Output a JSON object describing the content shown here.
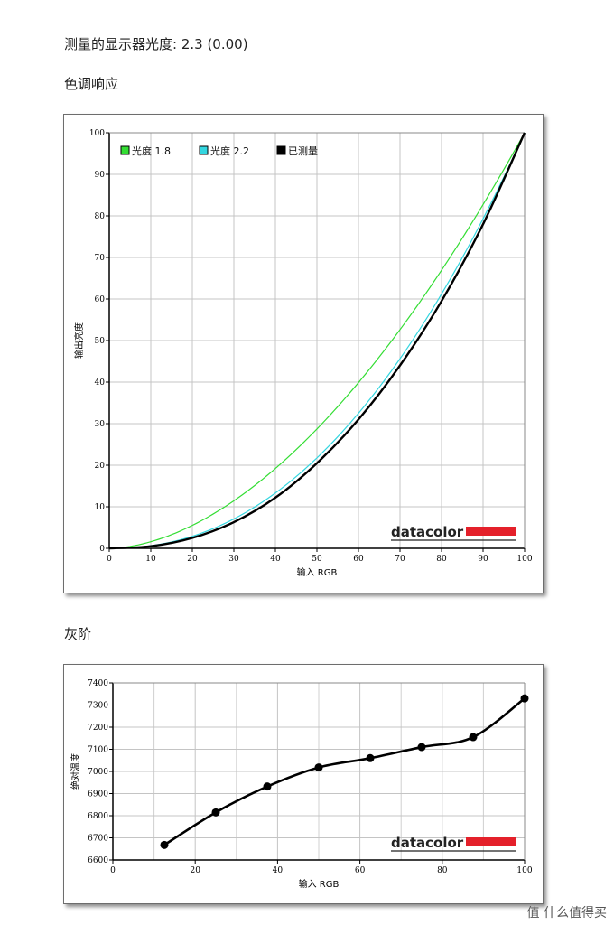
{
  "page": {
    "display_gamma_label": "测量的显示器光度:  2.3 (0.00)",
    "tone_response_heading": "色调响应",
    "grayscale_heading": "灰阶",
    "watermark": "值 什么值得买",
    "brand_logo_text": "datacolor",
    "brand_color": "#e4202a"
  },
  "chart_data": [
    {
      "type": "line",
      "title": "",
      "xlabel": "输入 RGB",
      "ylabel": "输出亮度",
      "xlim": [
        0,
        100
      ],
      "ylim": [
        0,
        100
      ],
      "xticks": [
        "0",
        "10",
        "20",
        "30",
        "40",
        "50",
        "60",
        "70",
        "80",
        "90",
        "100"
      ],
      "yticks": [
        "0",
        "10",
        "20",
        "30",
        "40",
        "50",
        "60",
        "70",
        "80",
        "90",
        "100"
      ],
      "grid": true,
      "legend_position": "top-left",
      "series": [
        {
          "name": "光度 1.8",
          "color": "#33dd33",
          "gamma": 1.8,
          "x": [
            0,
            10,
            20,
            30,
            40,
            50,
            60,
            70,
            80,
            90,
            100
          ],
          "y": [
            0,
            1.6,
            5.5,
            11.5,
            19.2,
            28.7,
            39.8,
            52.6,
            66.9,
            82.7,
            100
          ]
        },
        {
          "name": "光度 2.2",
          "color": "#33d6e0",
          "gamma": 2.2,
          "x": [
            0,
            10,
            20,
            30,
            40,
            50,
            60,
            70,
            80,
            90,
            100
          ],
          "y": [
            0,
            0.6,
            2.9,
            7.1,
            13.3,
            21.8,
            32.5,
            45.6,
            61.2,
            79.3,
            100
          ]
        },
        {
          "name": "已测量",
          "color": "#000000",
          "x": [
            0,
            10,
            20,
            30,
            40,
            50,
            60,
            70,
            80,
            90,
            100
          ],
          "y": [
            0,
            0.5,
            2.5,
            6.3,
            12.2,
            20.5,
            31.0,
            44.0,
            59.5,
            78.0,
            100
          ]
        }
      ]
    },
    {
      "type": "line",
      "title": "",
      "xlabel": "输入 RGB",
      "ylabel": "绝对温度",
      "xlim": [
        0,
        100
      ],
      "ylim": [
        6600,
        7400
      ],
      "xticks": [
        "0",
        "20",
        "40",
        "60",
        "80",
        "100"
      ],
      "yticks": [
        "6600",
        "6700",
        "6800",
        "6900",
        "7000",
        "7100",
        "7200",
        "7300",
        "7400"
      ],
      "grid": true,
      "series": [
        {
          "name": "",
          "color": "#000000",
          "x": [
            12.5,
            25,
            37.5,
            50,
            62.5,
            75,
            87.5,
            100
          ],
          "y": [
            6668,
            6815,
            6932,
            7018,
            7060,
            7110,
            7155,
            7330
          ]
        }
      ]
    }
  ]
}
